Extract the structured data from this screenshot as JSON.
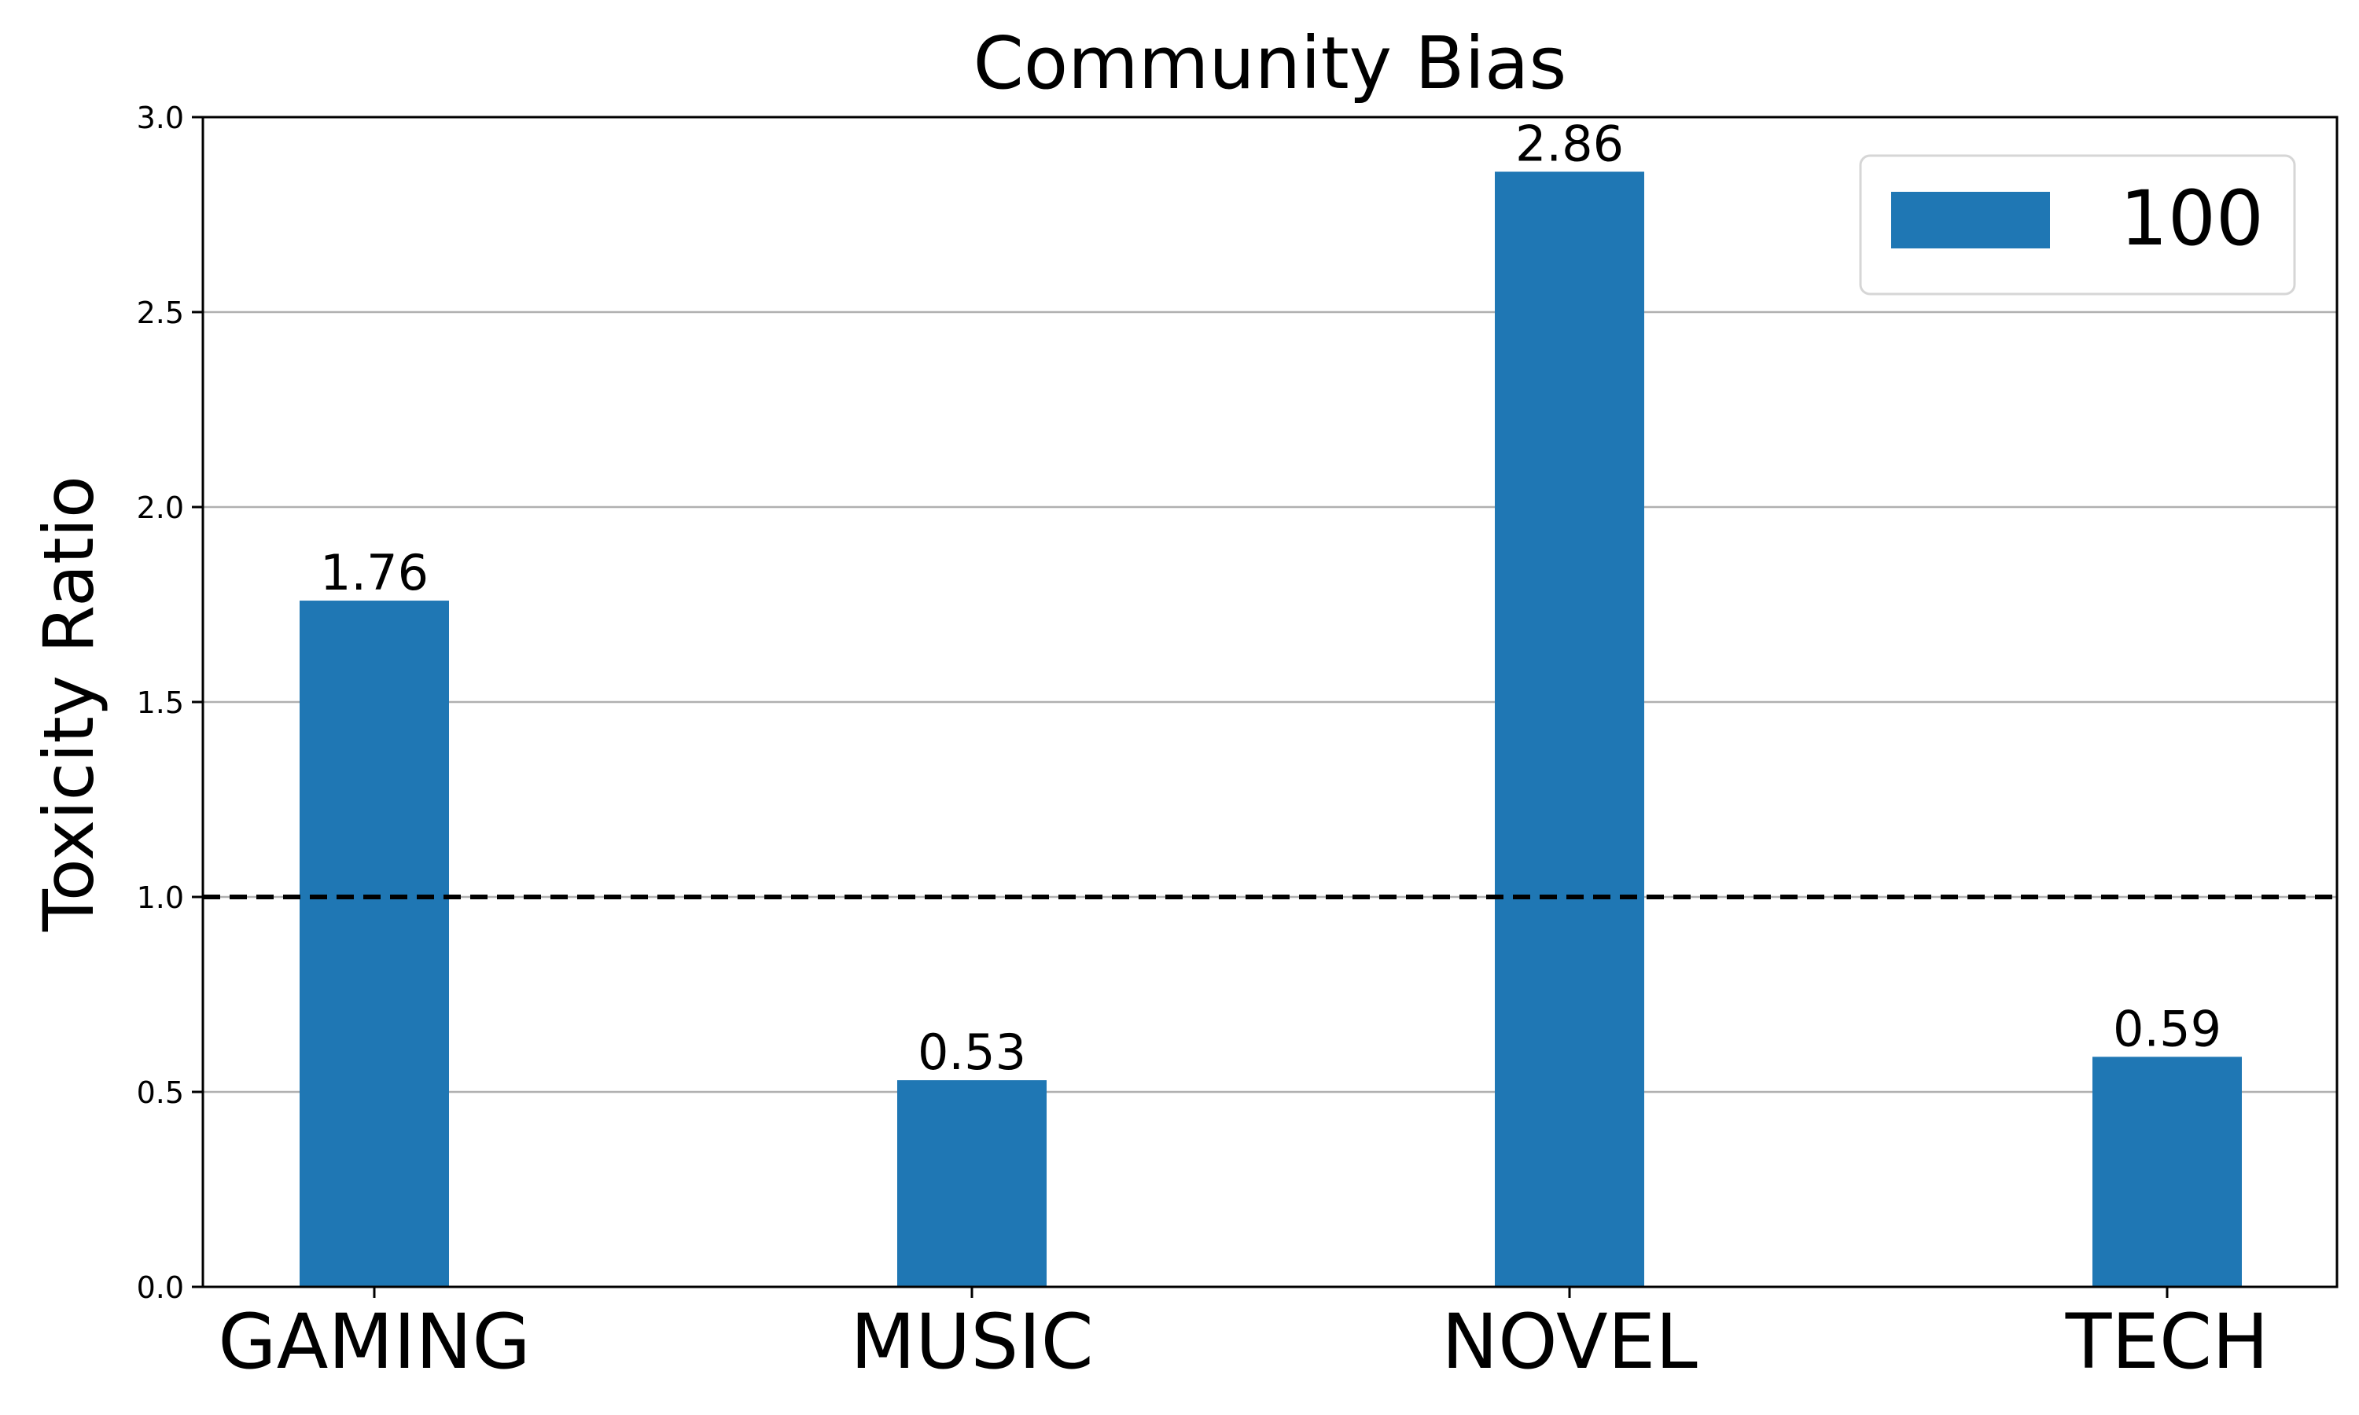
{
  "chart_data": {
    "type": "bar",
    "title": "Community Bias",
    "xlabel": "",
    "ylabel": "Toxicity Ratio",
    "categories": [
      "GAMING",
      "MUSIC",
      "NOVEL",
      "TECH"
    ],
    "series": [
      {
        "name": "100",
        "values": [
          1.76,
          0.53,
          2.86,
          0.59
        ],
        "color": "#1f77b4"
      }
    ],
    "data_labels": [
      "1.76",
      "0.53",
      "2.86",
      "0.59"
    ],
    "ylim": [
      0,
      3.0
    ],
    "yticks": [
      0.0,
      0.5,
      1.0,
      1.5,
      2.0,
      2.5,
      3.0
    ],
    "ytick_labels": [
      "0.0",
      "0.5",
      "1.0",
      "1.5",
      "2.0",
      "2.5",
      "3.0"
    ],
    "reference_line": {
      "y": 1.0,
      "style": "dashed",
      "color": "#000000"
    },
    "grid": {
      "y": true,
      "x": false,
      "color": "#b0b0b0"
    },
    "legend": {
      "placement": "top-right",
      "entries": [
        "100"
      ]
    }
  }
}
